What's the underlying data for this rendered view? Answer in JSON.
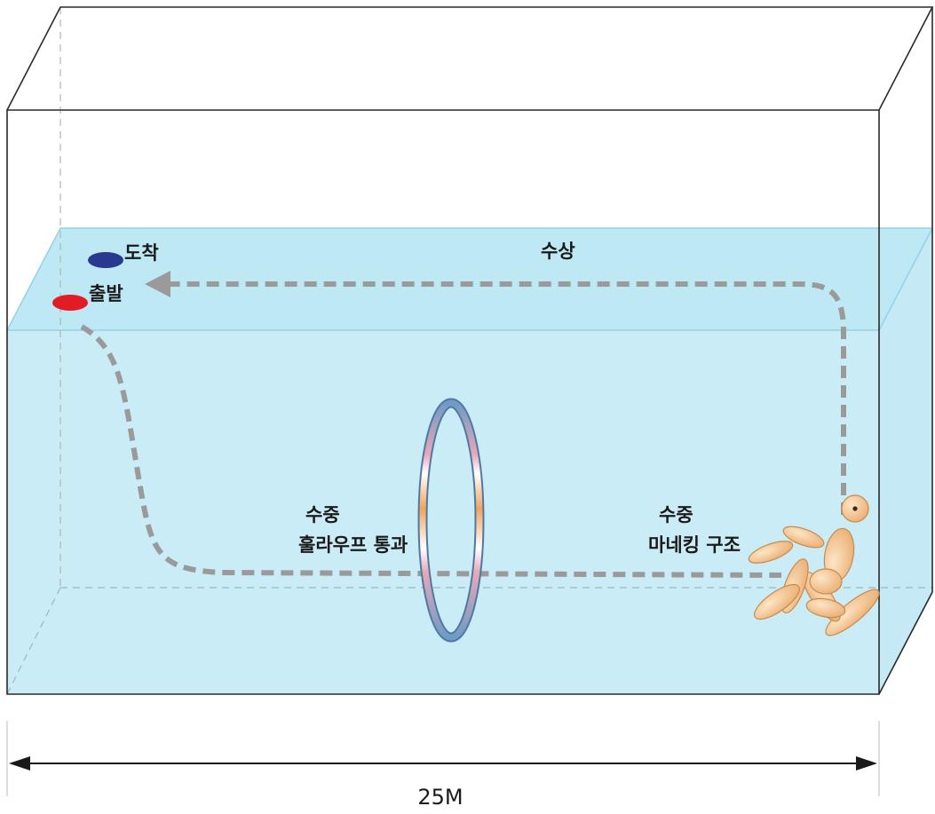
{
  "labels": {
    "arrive": "도착",
    "start": "출발",
    "surface": "수상",
    "hoop_line1": "수중",
    "hoop_line2": "훌라우프 통과",
    "rescue_line1": "수중",
    "rescue_line2": "마네킹 구조",
    "length": "25M"
  },
  "colors": {
    "water": "#c9ecf6",
    "water_surface": "#bde6f4",
    "water_edge": "#8fd3ea",
    "start_marker": "#e21c25",
    "arrive_marker": "#273a8f",
    "path": "#9a9a9a",
    "hoop_outer": "#5a86b0",
    "hoop_inner": "#b9dff0",
    "mannequin": "#f4c48e"
  },
  "icons": {
    "start": "red-oval-marker",
    "arrive": "blue-oval-marker",
    "hoop": "hula-hoop-icon",
    "mannequin": "mannequin-icon"
  }
}
